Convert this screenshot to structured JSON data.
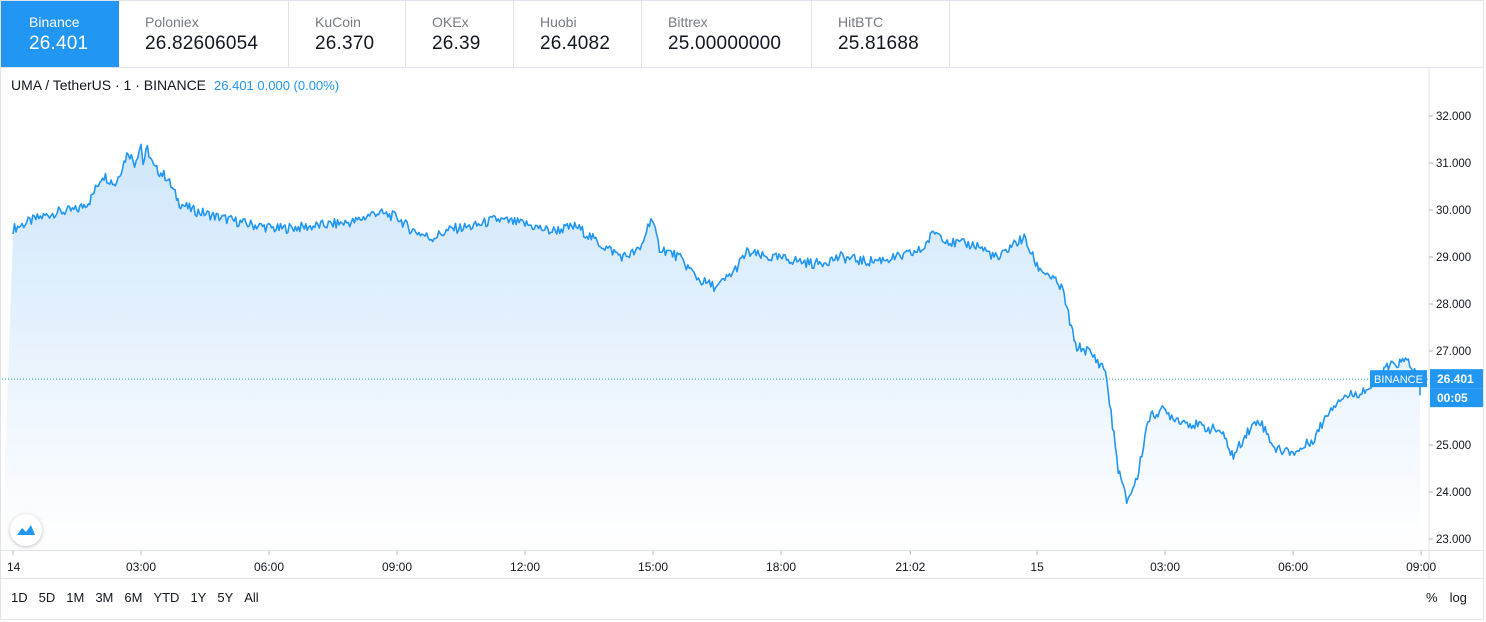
{
  "exchanges": [
    {
      "name": "Binance",
      "price": "26.401",
      "active": true
    },
    {
      "name": "Poloniex",
      "price": "26.82606054",
      "active": false
    },
    {
      "name": "KuCoin",
      "price": "26.370",
      "active": false
    },
    {
      "name": "OKEx",
      "price": "26.39",
      "active": false
    },
    {
      "name": "Huobi",
      "price": "26.4082",
      "active": false
    },
    {
      "name": "Bittrex",
      "price": "25.00000000",
      "active": false
    },
    {
      "name": "HitBTC",
      "price": "25.81688",
      "active": false
    }
  ],
  "legend": {
    "symbol": "UMA / TetherUS · 1 · BINANCE",
    "values": "26.401  0.000 (0.00%)"
  },
  "price_label": {
    "exchange": "BINANCE",
    "price": "26.401",
    "countdown": "00:05"
  },
  "ranges": [
    "1D",
    "5D",
    "1M",
    "3M",
    "6M",
    "YTD",
    "1Y",
    "5Y",
    "All"
  ],
  "scale_options": {
    "percent": "%",
    "log": "log"
  },
  "colors": {
    "line": "#2196f3",
    "accent": "#2196f3",
    "fill_top": "#cfe6fb",
    "fill_bottom": "#ffffff"
  },
  "chart_data": {
    "type": "area",
    "title": "",
    "xlabel": "",
    "ylabel": "",
    "ylim": [
      22.75,
      32.4
    ],
    "yticks": [
      23.0,
      24.0,
      25.0,
      26.0,
      27.0,
      28.0,
      29.0,
      30.0,
      31.0,
      32.0
    ],
    "ytick_labels": [
      "23.000",
      "24.000",
      "25.000",
      "",
      "27.000",
      "28.000",
      "29.000",
      "30.000",
      "31.000",
      "32.000"
    ],
    "xticks": [
      "14",
      "03:00",
      "06:00",
      "09:00",
      "12:00",
      "15:00",
      "18:00",
      "21:02",
      "15",
      "03:00",
      "06:00",
      "09:00"
    ],
    "xtick_hours": [
      0,
      3,
      6,
      9,
      12,
      15,
      18,
      21.03,
      24,
      27,
      30,
      33
    ],
    "grid": false,
    "last_value": 26.401,
    "series": [
      {
        "x": [
          0,
          0.5,
          1,
          1.5,
          1.8,
          2.1,
          2.4,
          2.7,
          2.85,
          3.0,
          3.05,
          3.15,
          3.3,
          3.6,
          3.9,
          4.2,
          4.8,
          5.5,
          6.2,
          7.0,
          7.5,
          8.0,
          8.5,
          9.0,
          9.3,
          9.8,
          10.3,
          10.8,
          11.3,
          12.0,
          12.6,
          13.2,
          13.8,
          14.3,
          14.7,
          14.95,
          15.15,
          15.6,
          16.1,
          16.5,
          16.9,
          17.2,
          17.6,
          18.2,
          18.8,
          19.4,
          20.0,
          20.8,
          21.3,
          21.6,
          22.0,
          22.6,
          23.1,
          23.4,
          23.7,
          24.0,
          24.3,
          24.6,
          24.9,
          25.2,
          25.6,
          25.9,
          26.1,
          26.35,
          26.6,
          26.9,
          27.3,
          27.8,
          28.3,
          28.6,
          28.9,
          29.2,
          29.6,
          30.1,
          30.5,
          30.85,
          31.1,
          31.5,
          31.9,
          32.2,
          32.5,
          32.7,
          33.1,
          33.5,
          33.7
        ],
        "y": [
          29.6,
          29.8,
          29.95,
          30.0,
          30.2,
          30.75,
          30.55,
          31.25,
          31.0,
          31.4,
          31.0,
          31.3,
          30.9,
          30.7,
          30.15,
          30.0,
          29.85,
          29.7,
          29.6,
          29.65,
          29.7,
          29.75,
          29.95,
          29.85,
          29.6,
          29.4,
          29.6,
          29.65,
          29.8,
          29.7,
          29.55,
          29.65,
          29.25,
          29.0,
          29.15,
          29.85,
          29.2,
          29.0,
          28.5,
          28.35,
          28.7,
          29.1,
          29.0,
          28.95,
          28.85,
          29.0,
          28.9,
          29.0,
          29.15,
          29.55,
          29.3,
          29.25,
          28.95,
          29.25,
          29.4,
          28.8,
          28.6,
          28.3,
          27.1,
          27.0,
          26.6,
          24.5,
          23.8,
          24.3,
          25.55,
          25.75,
          25.55,
          25.4,
          25.3,
          24.75,
          25.25,
          25.55,
          24.9,
          24.85,
          25.15,
          25.75,
          26.0,
          26.1,
          26.25,
          26.65,
          26.75,
          26.8,
          26.1,
          26.4,
          26.4
        ]
      }
    ]
  }
}
